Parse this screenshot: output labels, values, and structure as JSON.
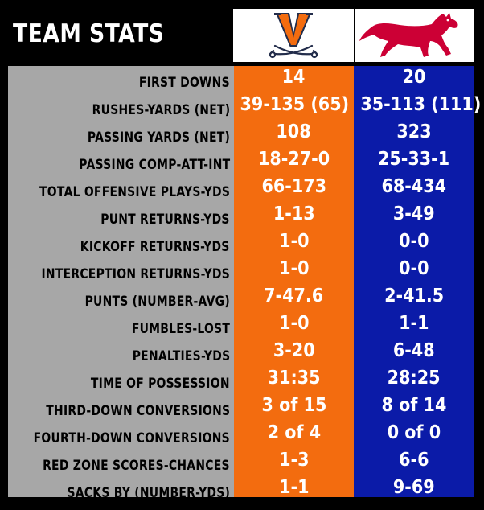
{
  "header": {
    "title": "TEAM STATS",
    "team1_logo": "uva-cavaliers-logo",
    "team2_logo": "smu-mustang-logo"
  },
  "colors": {
    "team1": "#f36c0f",
    "team2": "#0b1ba8",
    "labels_bg": "#a7a7a7",
    "background": "#000000"
  },
  "stats": [
    {
      "label": "FIRST DOWNS",
      "team1": "14",
      "team2": "20"
    },
    {
      "label": "RUSHES-YARDS (NET)",
      "team1": "39-135 (65)",
      "team2": "35-113 (111)"
    },
    {
      "label": "PASSING YARDS (NET)",
      "team1": "108",
      "team2": "323"
    },
    {
      "label": "PASSING COMP-ATT-INT",
      "team1": "18-27-0",
      "team2": "25-33-1"
    },
    {
      "label": "TOTAL OFFENSIVE PLAYS-YDS",
      "team1": "66-173",
      "team2": "68-434"
    },
    {
      "label": "PUNT RETURNS-YDS",
      "team1": "1-13",
      "team2": "3-49"
    },
    {
      "label": "KICKOFF RETURNS-YDS",
      "team1": "1-0",
      "team2": "0-0"
    },
    {
      "label": "INTERCEPTION RETURNS-YDS",
      "team1": "1-0",
      "team2": "0-0"
    },
    {
      "label": "PUNTS (NUMBER-AVG)",
      "team1": "7-47.6",
      "team2": "2-41.5"
    },
    {
      "label": "FUMBLES-LOST",
      "team1": "1-0",
      "team2": "1-1"
    },
    {
      "label": "PENALTIES-YDS",
      "team1": "3-20",
      "team2": "6-48"
    },
    {
      "label": "TIME OF POSSESSION",
      "team1": "31:35",
      "team2": "28:25"
    },
    {
      "label": "THIRD-DOWN CONVERSIONS",
      "team1": "3 of 15",
      "team2": "8 of 14"
    },
    {
      "label": "FOURTH-DOWN CONVERSIONS",
      "team1": "2 of 4",
      "team2": "0 of 0"
    },
    {
      "label": "RED ZONE SCORES-CHANCES",
      "team1": "1-3",
      "team2": "6-6"
    },
    {
      "label": "SACKS BY (NUMBER-YDS)",
      "team1": "1-1",
      "team2": "9-69"
    }
  ]
}
